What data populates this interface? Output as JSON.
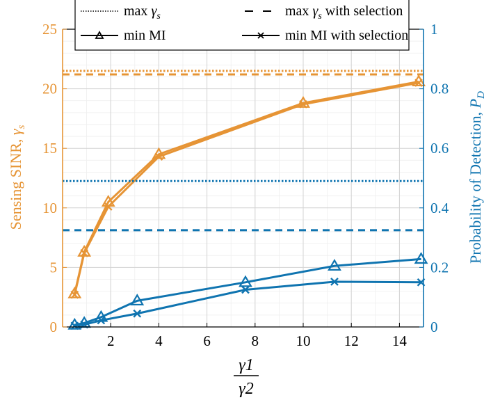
{
  "chart_data": {
    "type": "line",
    "xlabel": "γ1 / γ2",
    "x_fraction": {
      "numerator": "γ1",
      "denominator": "γ2"
    },
    "xlim": [
      0,
      15
    ],
    "x_ticks": [
      "2",
      "4",
      "6",
      "8",
      "10",
      "12",
      "14"
    ],
    "x_tick_values": [
      2,
      4,
      6,
      8,
      10,
      12,
      14
    ],
    "left_axis": {
      "label": "Sensing SINR, γs",
      "label_main": "Sensing SINR, ",
      "label_symbol": "γ",
      "label_sub": "s",
      "ylim": [
        0,
        25
      ],
      "ticks": [
        "0",
        "5",
        "10",
        "15",
        "20",
        "25"
      ],
      "tick_values": [
        0,
        5,
        10,
        15,
        20,
        25
      ],
      "color": "#e69435"
    },
    "right_axis": {
      "label": "Probability of Detection, PD",
      "label_main": "Probability of Detection, ",
      "label_symbol": "P",
      "label_sub": "D",
      "ylim": [
        0,
        1
      ],
      "ticks": [
        "0",
        "0.2",
        "0.4",
        "0.6",
        "0.8",
        "1"
      ],
      "tick_values": [
        0,
        0.2,
        0.4,
        0.6,
        0.8,
        1
      ],
      "color": "#0f74b0"
    },
    "grid": true,
    "legend_position": "top",
    "legend": [
      {
        "label": "max γs",
        "text": "max ",
        "symbol": "γ",
        "sub": "s",
        "style": "dotted",
        "marker": "none"
      },
      {
        "label": "max γs with selection",
        "text": "max ",
        "symbol": "γ",
        "sub": "s",
        "suffix": " with selection",
        "style": "dashed",
        "marker": "none"
      },
      {
        "label": "min MI",
        "text": "min MI",
        "style": "solid",
        "marker": "triangle"
      },
      {
        "label": "min MI with selection",
        "text": "min MI with selection",
        "style": "solid",
        "marker": "x"
      }
    ],
    "series": [
      {
        "name": "max γs",
        "axis": "left",
        "style": "dotted",
        "marker": "none",
        "color": "#e69435",
        "x": [
          0,
          15
        ],
        "y": [
          21.5,
          21.5
        ]
      },
      {
        "name": "max γs with selection",
        "axis": "left",
        "style": "dashed",
        "marker": "none",
        "color": "#e69435",
        "x": [
          0,
          15
        ],
        "y": [
          21.2,
          21.2
        ]
      },
      {
        "name": "min MI",
        "axis": "left",
        "style": "solid",
        "marker": "triangle",
        "color": "#e69435",
        "x": [
          0.5,
          0.9,
          1.9,
          4,
          10,
          14.8
        ],
        "y": [
          2.8,
          6.3,
          10.5,
          14.5,
          18.8,
          20.6
        ]
      },
      {
        "name": "min MI with selection",
        "axis": "left",
        "style": "solid",
        "marker": "x",
        "color": "#e69435",
        "x": [
          0.5,
          0.9,
          1.9,
          4,
          10,
          14.8
        ],
        "y": [
          2.7,
          6.2,
          10.1,
          14.3,
          18.7,
          20.5
        ]
      },
      {
        "name": "max γs",
        "axis": "right",
        "style": "dotted",
        "marker": "none",
        "color": "#0f74b0",
        "x": [
          0,
          15
        ],
        "y": [
          0.49,
          0.49
        ]
      },
      {
        "name": "max γs with selection",
        "axis": "right",
        "style": "dashed",
        "marker": "none",
        "color": "#0f74b0",
        "x": [
          0,
          15
        ],
        "y": [
          0.325,
          0.325
        ]
      },
      {
        "name": "min MI",
        "axis": "right",
        "style": "solid",
        "marker": "triangle",
        "color": "#0f74b0",
        "x": [
          0.5,
          0.9,
          1.6,
          3.1,
          7.6,
          11.3,
          14.9
        ],
        "y": [
          0.007,
          0.013,
          0.033,
          0.088,
          0.15,
          0.205,
          0.228
        ]
      },
      {
        "name": "min MI with selection",
        "axis": "right",
        "style": "solid",
        "marker": "x",
        "color": "#0f74b0",
        "x": [
          0.5,
          0.9,
          1.6,
          3.1,
          7.6,
          11.3,
          14.9
        ],
        "y": [
          0.004,
          0.008,
          0.022,
          0.045,
          0.125,
          0.152,
          0.15
        ]
      }
    ]
  }
}
